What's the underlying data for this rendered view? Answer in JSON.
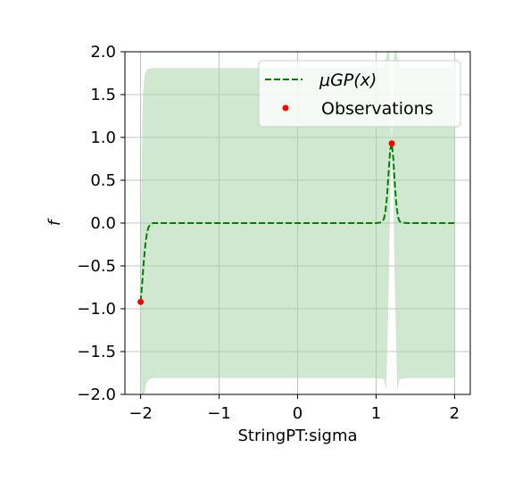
{
  "chart_data": {
    "type": "line",
    "xlabel": "StringPT:sigma",
    "ylabel": "f",
    "xlim": [
      -2.2,
      2.2
    ],
    "ylim": [
      -2.0,
      2.0
    ],
    "xticks": [
      -2,
      -1,
      0,
      1,
      2
    ],
    "yticks": [
      -2.0,
      -1.5,
      -1.0,
      -0.5,
      0.0,
      0.5,
      1.0,
      1.5,
      2.0
    ],
    "xtick_labels": [
      "−2",
      "−1",
      "0",
      "1",
      "2"
    ],
    "ytick_labels": [
      "−2.0",
      "−1.5",
      "−1.0",
      "−0.5",
      "0.0",
      "0.5",
      "1.0",
      "1.5",
      "2.0"
    ],
    "grid": true,
    "legend_position": "top-right",
    "series": [
      {
        "name": "μGP(x)",
        "style": "dashed",
        "color": "#008000",
        "x": [
          -2.0,
          -1.98,
          -1.96,
          -1.94,
          -1.92,
          -1.9,
          -1.88,
          -1.86,
          -1.84,
          -1.8,
          -1.7,
          -1.5,
          -1.0,
          -0.5,
          0.0,
          0.5,
          1.0,
          1.05,
          1.08,
          1.1,
          1.12,
          1.14,
          1.16,
          1.18,
          1.2,
          1.22,
          1.24,
          1.26,
          1.28,
          1.3,
          1.33,
          1.4,
          1.6,
          1.8,
          2.0
        ],
        "values": [
          -0.92,
          -0.7,
          -0.45,
          -0.25,
          -0.12,
          -0.05,
          -0.02,
          -0.005,
          0.0,
          0.0,
          0.0,
          0.0,
          0.0,
          0.0,
          0.0,
          0.0,
          0.0,
          0.005,
          0.02,
          0.05,
          0.14,
          0.32,
          0.6,
          0.86,
          0.93,
          0.74,
          0.44,
          0.2,
          0.07,
          0.02,
          0.005,
          0.0,
          0.0,
          0.0,
          0.0
        ]
      },
      {
        "name": "Observations",
        "style": "points",
        "color": "#ff0000",
        "x": [
          -2.0,
          1.2
        ],
        "values": [
          -0.92,
          0.93
        ]
      }
    ],
    "confidence_band": {
      "color": "#a9d3a9",
      "x": [
        -2.0,
        -1.99,
        -1.98,
        -1.97,
        -1.95,
        -1.93,
        -1.9,
        -1.85,
        -1.8,
        -1.5,
        -1.0,
        0.0,
        1.0,
        1.1,
        1.13,
        1.16,
        1.18,
        1.2,
        1.22,
        1.24,
        1.27,
        1.3,
        1.4,
        1.8,
        2.0
      ],
      "upper": [
        -0.92,
        0.4,
        1.1,
        1.5,
        1.72,
        1.78,
        1.8,
        1.81,
        1.81,
        1.81,
        1.81,
        1.81,
        1.81,
        1.82,
        1.95,
        2.4,
        1.6,
        0.93,
        1.6,
        2.4,
        1.95,
        1.82,
        1.81,
        1.81,
        1.81
      ],
      "lower": [
        -0.92,
        -2.3,
        -2.3,
        -2.2,
        -2.0,
        -1.88,
        -1.83,
        -1.81,
        -1.81,
        -1.81,
        -1.81,
        -1.81,
        -1.81,
        -1.82,
        -1.95,
        -0.8,
        0.3,
        0.93,
        0.3,
        -0.8,
        -1.95,
        -1.82,
        -1.81,
        -1.81,
        -1.81
      ]
    }
  }
}
